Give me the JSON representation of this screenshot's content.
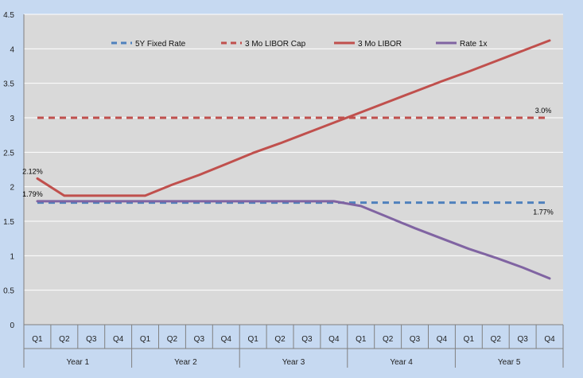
{
  "chart_data": {
    "type": "line",
    "title": "",
    "xlabel": "",
    "ylabel": "",
    "ylim": [
      0,
      4.5
    ],
    "yticks": [
      "0",
      "0.5",
      "1",
      "1.5",
      "2",
      "2.5",
      "3",
      "3.5",
      "4",
      "4.5"
    ],
    "grid": true,
    "legend_position": "top",
    "categories": [
      "Q1",
      "Q2",
      "Q3",
      "Q4",
      "Q1",
      "Q2",
      "Q3",
      "Q4",
      "Q1",
      "Q2",
      "Q3",
      "Q4",
      "Q1",
      "Q2",
      "Q3",
      "Q4",
      "Q1",
      "Q2",
      "Q3",
      "Q4"
    ],
    "groups": [
      {
        "label": "Year 1",
        "span": 4
      },
      {
        "label": "Year 2",
        "span": 4
      },
      {
        "label": "Year 3",
        "span": 4
      },
      {
        "label": "Year 4",
        "span": 4
      },
      {
        "label": "Year 5",
        "span": 4
      }
    ],
    "series": [
      {
        "name": "5Y Fixed Rate",
        "style": "dashed",
        "color": "#4f81bd",
        "values": [
          1.77,
          1.77,
          1.77,
          1.77,
          1.77,
          1.77,
          1.77,
          1.77,
          1.77,
          1.77,
          1.77,
          1.77,
          1.77,
          1.77,
          1.77,
          1.77,
          1.77,
          1.77,
          1.77,
          1.77
        ]
      },
      {
        "name": "3 Mo LIBOR Cap",
        "style": "dashed",
        "color": "#c0504d",
        "values": [
          3.0,
          3.0,
          3.0,
          3.0,
          3.0,
          3.0,
          3.0,
          3.0,
          3.0,
          3.0,
          3.0,
          3.0,
          3.0,
          3.0,
          3.0,
          3.0,
          3.0,
          3.0,
          3.0,
          3.0
        ]
      },
      {
        "name": "3 Mo LIBOR",
        "style": "solid",
        "color": "#c0504d",
        "values": [
          2.12,
          1.87,
          1.87,
          1.87,
          1.87,
          2.03,
          2.17,
          2.33,
          2.49,
          2.63,
          2.78,
          2.93,
          3.08,
          3.23,
          3.38,
          3.53,
          3.67,
          3.82,
          3.97,
          4.12
        ]
      },
      {
        "name": "Rate 1x",
        "style": "solid",
        "color": "#8064a2",
        "values": [
          1.79,
          1.79,
          1.79,
          1.79,
          1.79,
          1.79,
          1.79,
          1.79,
          1.79,
          1.79,
          1.79,
          1.79,
          1.72,
          1.56,
          1.4,
          1.25,
          1.1,
          0.97,
          0.83,
          0.67
        ]
      }
    ],
    "annotations": [
      {
        "text": "2.12%",
        "series": 2,
        "index": 0,
        "position": "above"
      },
      {
        "text": "1.79%",
        "series": 3,
        "index": 0,
        "position": "above"
      },
      {
        "text": "3.0%",
        "series": 1,
        "index": 19,
        "position": "above"
      },
      {
        "text": "1.77%",
        "series": 0,
        "index": 19,
        "position": "below"
      }
    ]
  }
}
